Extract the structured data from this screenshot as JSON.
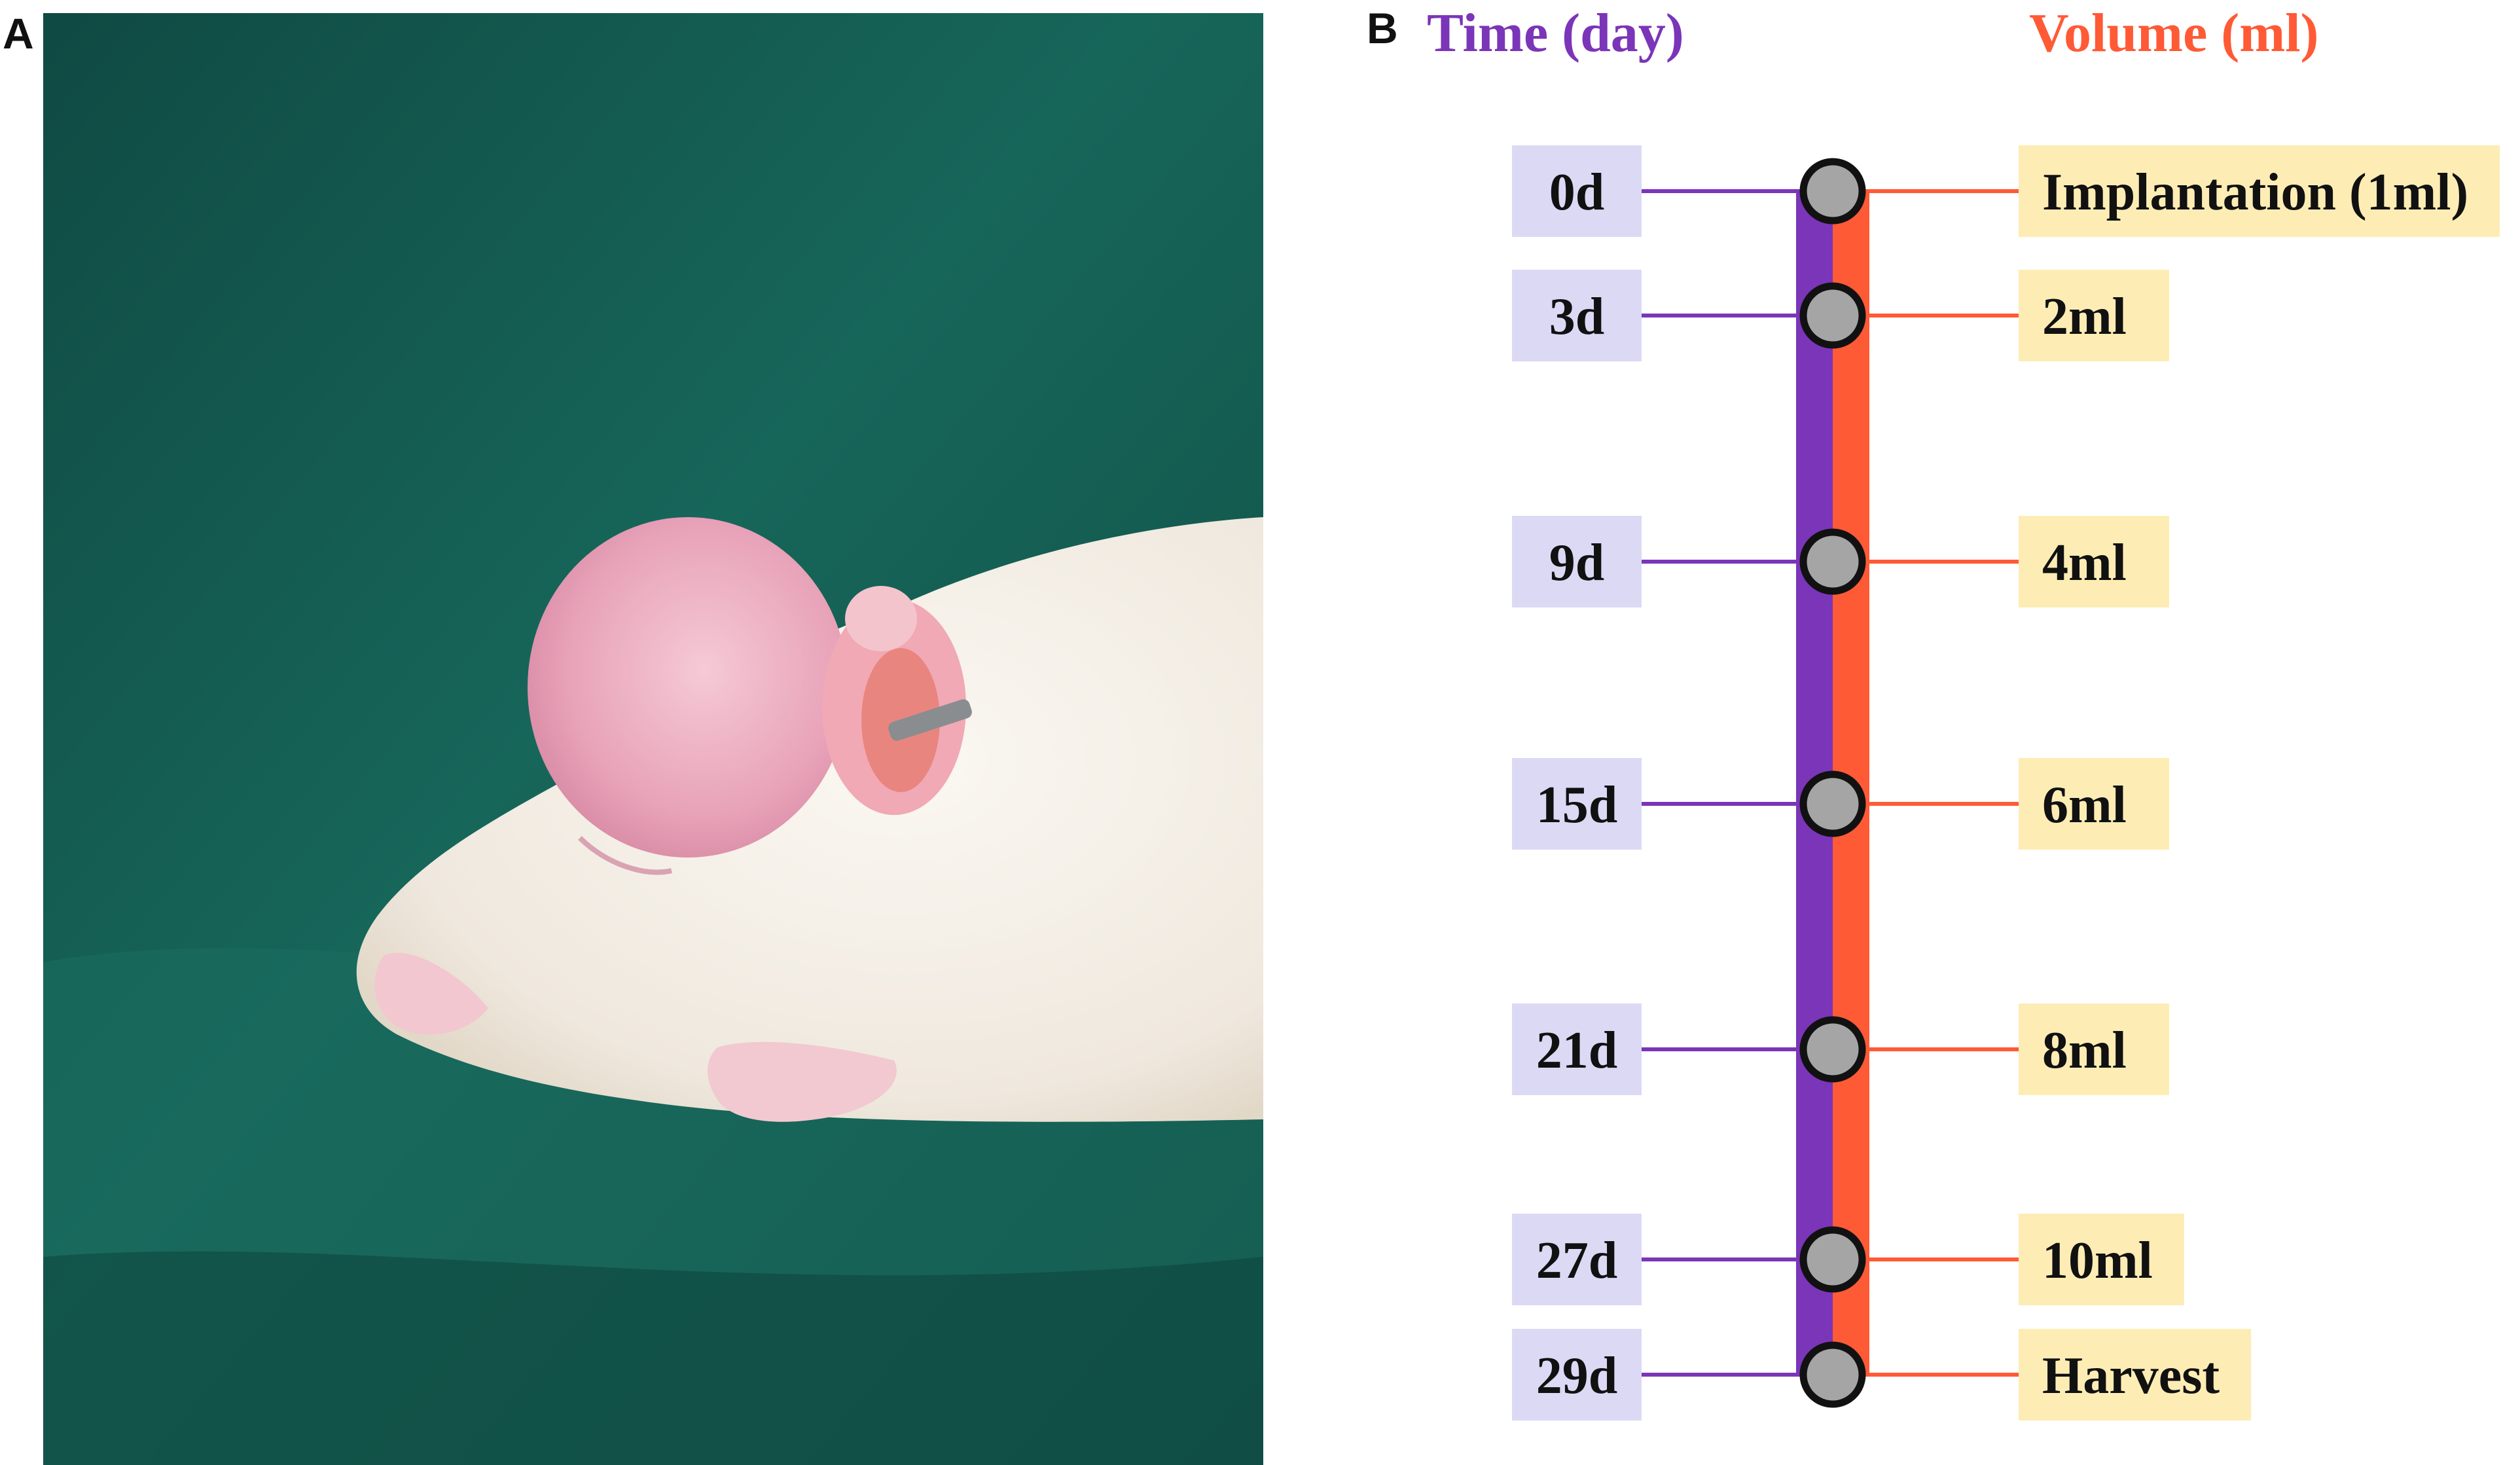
{
  "panels": {
    "a": "A",
    "b": "B"
  },
  "headers": {
    "time": "Time (day)",
    "volume": "Volume (ml)"
  },
  "steps": [
    {
      "day": "0d",
      "volume": "Implantation (1ml)"
    },
    {
      "day": "3d",
      "volume": "2ml"
    },
    {
      "day": "9d",
      "volume": "4ml"
    },
    {
      "day": "15d",
      "volume": "6ml"
    },
    {
      "day": "21d",
      "volume": "8ml"
    },
    {
      "day": "27d",
      "volume": "10ml"
    },
    {
      "day": "29d",
      "volume": "Harvest"
    }
  ],
  "colors": {
    "time": "#7b35b8",
    "volume": "#ff5a36",
    "day_box": "#dcd9f5",
    "volume_box": "#fdedb5",
    "node_fill": "#a5a5a5",
    "node_stroke": "#111111"
  },
  "photo": {
    "subject": "albino rat with expanded scalp, ear tag",
    "background_color": "#145f52"
  }
}
